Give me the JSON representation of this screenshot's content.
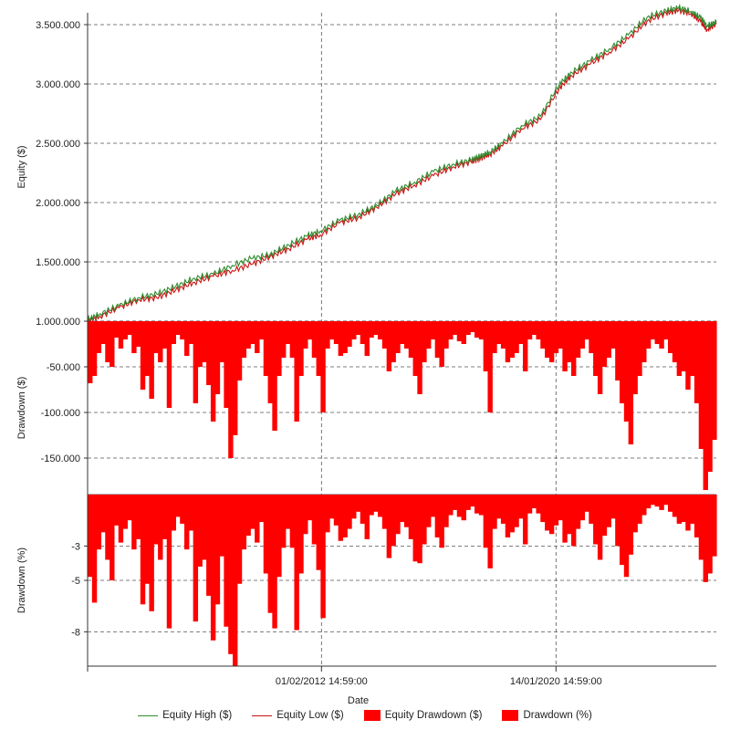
{
  "chart_data": [
    {
      "type": "line",
      "panel": "equity",
      "ylabel": "Equity ($)",
      "ylim": [
        1000000,
        3600000
      ],
      "yticks": [
        1000000,
        1500000,
        2000000,
        2500000,
        3000000,
        3500000
      ],
      "ytick_labels": [
        "1.000.000",
        "1.500.000",
        "2.000.000",
        "2.500.000",
        "3.000.000",
        "3.500.000"
      ],
      "xlim": [
        0,
        1
      ],
      "x": [
        0,
        0.02,
        0.05,
        0.08,
        0.11,
        0.14,
        0.17,
        0.2,
        0.23,
        0.26,
        0.29,
        0.32,
        0.35,
        0.37,
        0.4,
        0.43,
        0.46,
        0.49,
        0.52,
        0.55,
        0.58,
        0.61,
        0.625,
        0.64,
        0.66,
        0.69,
        0.72,
        0.75,
        0.77,
        0.8,
        0.83,
        0.86,
        0.89,
        0.92,
        0.94,
        0.96,
        0.975,
        0.985,
        1.0
      ],
      "series": [
        {
          "name": "Equity High ($)",
          "color": "#2e8b2e",
          "values": [
            1010000,
            1060000,
            1130000,
            1200000,
            1230000,
            1290000,
            1360000,
            1400000,
            1470000,
            1530000,
            1560000,
            1640000,
            1720000,
            1760000,
            1850000,
            1900000,
            1980000,
            2100000,
            2170000,
            2260000,
            2320000,
            2360000,
            2390000,
            2430000,
            2500000,
            2650000,
            2730000,
            3000000,
            3100000,
            3200000,
            3300000,
            3410000,
            3560000,
            3620000,
            3640000,
            3610000,
            3560000,
            3490000,
            3520000
          ]
        },
        {
          "name": "Equity Low ($)",
          "color": "#cc1111",
          "values": [
            1000000,
            1040000,
            1110000,
            1180000,
            1200000,
            1260000,
            1330000,
            1380000,
            1430000,
            1480000,
            1540000,
            1610000,
            1690000,
            1730000,
            1830000,
            1870000,
            1960000,
            2070000,
            2150000,
            2230000,
            2300000,
            2340000,
            2370000,
            2410000,
            2480000,
            2620000,
            2700000,
            2960000,
            3070000,
            3170000,
            3270000,
            3380000,
            3530000,
            3600000,
            3620000,
            3590000,
            3530000,
            3460000,
            3510000
          ]
        }
      ]
    },
    {
      "type": "bar",
      "panel": "drawdown_usd",
      "ylabel": "Drawdown ($)",
      "ylim": [
        -190000,
        0
      ],
      "yticks": [
        -50000,
        -100000,
        -150000
      ],
      "ytick_labels": [
        "-50.000",
        "-100.000",
        "-150.000"
      ],
      "series": [
        {
          "name": "Equity Drawdown ($)",
          "color": "#ff0000",
          "values": [
            -68000,
            -60000,
            -35000,
            -25000,
            -45000,
            -50000,
            -18000,
            -30000,
            -20000,
            -15000,
            -35000,
            -28000,
            -75000,
            -60000,
            -85000,
            -35000,
            -45000,
            -30000,
            -95000,
            -25000,
            -15000,
            -20000,
            -38000,
            -25000,
            -90000,
            -50000,
            -45000,
            -70000,
            -110000,
            -80000,
            -45000,
            -95000,
            -150000,
            -125000,
            -65000,
            -40000,
            -30000,
            -25000,
            -35000,
            -20000,
            -60000,
            -90000,
            -120000,
            -60000,
            -40000,
            -25000,
            -40000,
            -110000,
            -60000,
            -30000,
            -20000,
            -40000,
            -60000,
            -100000,
            -30000,
            -20000,
            -25000,
            -38000,
            -35000,
            -28000,
            -20000,
            -15000,
            -25000,
            -38000,
            -18000,
            -15000,
            -20000,
            -30000,
            -55000,
            -45000,
            -35000,
            -25000,
            -30000,
            -40000,
            -60000,
            -80000,
            -45000,
            -30000,
            -20000,
            -40000,
            -50000,
            -30000,
            -20000,
            -15000,
            -22000,
            -25000,
            -15000,
            -12000,
            -18000,
            -20000,
            -55000,
            -100000,
            -35000,
            -25000,
            -30000,
            -45000,
            -40000,
            -35000,
            -25000,
            -55000,
            -20000,
            -15000,
            -20000,
            -30000,
            -40000,
            -45000,
            -35000,
            -30000,
            -55000,
            -45000,
            -60000,
            -40000,
            -30000,
            -20000,
            -35000,
            -60000,
            -80000,
            -50000,
            -40000,
            -30000,
            -65000,
            -90000,
            -110000,
            -135000,
            -80000,
            -60000,
            -45000,
            -30000,
            -20000,
            -25000,
            -30000,
            -20000,
            -35000,
            -45000,
            -60000,
            -55000,
            -75000,
            -60000,
            -90000,
            -140000,
            -185000,
            -165000,
            -130000
          ]
        }
      ]
    },
    {
      "type": "bar",
      "panel": "drawdown_pct",
      "ylabel": "Drawdown (%)",
      "ylim": [
        -10,
        0
      ],
      "yticks": [
        -3,
        -5,
        -8
      ],
      "ytick_labels": [
        "-3",
        "-5",
        "-8"
      ],
      "xlabel": "Date",
      "xtick_labels": [
        "01/02/2012 14:59:00",
        "14/01/2020 14:59:00"
      ],
      "xtick_positions": [
        0.372,
        0.745
      ],
      "series": [
        {
          "name": "Drawdown (%)",
          "color": "#ff0000",
          "values": [
            -4.8,
            -6.3,
            -3.2,
            -2.2,
            -3.8,
            -5.0,
            -1.8,
            -2.8,
            -2.0,
            -1.5,
            -3.2,
            -2.6,
            -6.4,
            -5.2,
            -6.8,
            -2.9,
            -3.8,
            -2.6,
            -7.8,
            -2.1,
            -1.3,
            -1.7,
            -3.2,
            -2.1,
            -7.4,
            -4.2,
            -3.8,
            -5.9,
            -8.5,
            -6.4,
            -3.6,
            -7.7,
            -9.3,
            -10.0,
            -5.2,
            -3.2,
            -2.4,
            -2.0,
            -2.8,
            -1.6,
            -4.6,
            -6.9,
            -7.8,
            -4.8,
            -3.1,
            -2.0,
            -3.1,
            -7.9,
            -4.6,
            -2.3,
            -1.5,
            -2.9,
            -4.4,
            -7.2,
            -2.2,
            -1.4,
            -1.8,
            -2.7,
            -2.5,
            -2.0,
            -1.4,
            -1.0,
            -1.7,
            -2.6,
            -1.2,
            -1.0,
            -1.3,
            -2.0,
            -3.7,
            -3.0,
            -2.3,
            -1.6,
            -1.9,
            -2.6,
            -3.9,
            -4.0,
            -2.9,
            -1.9,
            -1.3,
            -2.5,
            -3.1,
            -1.9,
            -1.2,
            -0.9,
            -1.3,
            -1.5,
            -0.9,
            -0.7,
            -1.1,
            -1.2,
            -3.1,
            -4.3,
            -2.0,
            -1.4,
            -1.7,
            -2.5,
            -2.2,
            -1.9,
            -1.4,
            -2.9,
            -1.1,
            -0.8,
            -1.1,
            -1.6,
            -2.1,
            -2.3,
            -1.8,
            -1.5,
            -2.8,
            -2.3,
            -3.0,
            -2.0,
            -1.5,
            -1.0,
            -1.7,
            -2.9,
            -3.8,
            -2.4,
            -1.9,
            -1.4,
            -3.0,
            -4.1,
            -4.8,
            -3.5,
            -2.2,
            -1.7,
            -1.2,
            -0.8,
            -0.6,
            -0.7,
            -0.9,
            -0.6,
            -1.0,
            -1.3,
            -1.7,
            -1.6,
            -2.1,
            -1.7,
            -2.5,
            -3.8,
            -5.1,
            -4.6,
            -3.6
          ]
        }
      ]
    }
  ],
  "legend": [
    {
      "label": "Equity High ($)",
      "kind": "line",
      "color": "#2e8b2e"
    },
    {
      "label": "Equity Low ($)",
      "kind": "line",
      "color": "#cc1111"
    },
    {
      "label": "Equity Drawdown ($)",
      "kind": "box",
      "color": "#ff0000"
    },
    {
      "label": "Drawdown (%)",
      "kind": "box",
      "color": "#ff0000"
    }
  ]
}
